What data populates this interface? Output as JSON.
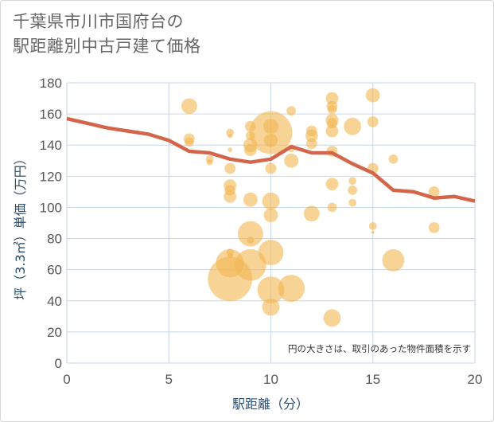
{
  "chart_data": {
    "type": "scatter",
    "title_lines": [
      "千葉県市川市国府台の",
      "駅距離別中古戸建て価格"
    ],
    "xlabel": "駅距離（分）",
    "ylabel": "坪（3.3㎡）単価（万円）",
    "note": "円の大きさは、取引のあった物件面積を示す",
    "xlim": [
      0,
      20
    ],
    "ylim": [
      0,
      180
    ],
    "x_ticks": [
      0,
      5,
      10,
      15,
      20
    ],
    "y_ticks": [
      0,
      20,
      40,
      60,
      80,
      100,
      120,
      140,
      160,
      180
    ],
    "grid": true,
    "colors": {
      "bubble": "#f2b550",
      "trend": "#d3654a",
      "grid": "#c8d6e5",
      "axis_text": "#555555"
    },
    "series": [
      {
        "kind": "bubble",
        "points": [
          {
            "x": 6,
            "y": 165,
            "s": 10
          },
          {
            "x": 6,
            "y": 144,
            "s": 7
          },
          {
            "x": 6,
            "y": 142,
            "s": 6
          },
          {
            "x": 7,
            "y": 131,
            "s": 5
          },
          {
            "x": 7,
            "y": 129,
            "s": 4
          },
          {
            "x": 8,
            "y": 148,
            "s": 5
          },
          {
            "x": 8,
            "y": 146,
            "s": 3
          },
          {
            "x": 8,
            "y": 137,
            "s": 3
          },
          {
            "x": 8,
            "y": 125,
            "s": 7
          },
          {
            "x": 8,
            "y": 114,
            "s": 8
          },
          {
            "x": 8,
            "y": 111,
            "s": 7
          },
          {
            "x": 8,
            "y": 107,
            "s": 8
          },
          {
            "x": 8,
            "y": 71,
            "s": 5
          },
          {
            "x": 8,
            "y": 69,
            "s": 4
          },
          {
            "x": 8,
            "y": 64,
            "s": 18
          },
          {
            "x": 8,
            "y": 54,
            "s": 28
          },
          {
            "x": 9,
            "y": 152,
            "s": 7
          },
          {
            "x": 9,
            "y": 146,
            "s": 6
          },
          {
            "x": 9,
            "y": 140,
            "s": 9
          },
          {
            "x": 9,
            "y": 137,
            "s": 8
          },
          {
            "x": 9,
            "y": 105,
            "s": 9
          },
          {
            "x": 9,
            "y": 83,
            "s": 16
          },
          {
            "x": 9,
            "y": 79,
            "s": 5
          },
          {
            "x": 9,
            "y": 63,
            "s": 20
          },
          {
            "x": 10,
            "y": 152,
            "s": 10
          },
          {
            "x": 10,
            "y": 148,
            "s": 27
          },
          {
            "x": 10,
            "y": 143,
            "s": 9
          },
          {
            "x": 10,
            "y": 125,
            "s": 7
          },
          {
            "x": 10,
            "y": 104,
            "s": 11
          },
          {
            "x": 10,
            "y": 95,
            "s": 9
          },
          {
            "x": 10,
            "y": 71,
            "s": 16
          },
          {
            "x": 10,
            "y": 47,
            "s": 17
          },
          {
            "x": 10,
            "y": 36,
            "s": 11
          },
          {
            "x": 11,
            "y": 162,
            "s": 6
          },
          {
            "x": 11,
            "y": 138,
            "s": 5
          },
          {
            "x": 11,
            "y": 130,
            "s": 9
          },
          {
            "x": 11,
            "y": 48,
            "s": 17
          },
          {
            "x": 12,
            "y": 149,
            "s": 7
          },
          {
            "x": 12,
            "y": 146,
            "s": 8
          },
          {
            "x": 12,
            "y": 141,
            "s": 7
          },
          {
            "x": 12,
            "y": 96,
            "s": 10
          },
          {
            "x": 13,
            "y": 170,
            "s": 8
          },
          {
            "x": 13,
            "y": 165,
            "s": 7
          },
          {
            "x": 13,
            "y": 163,
            "s": 6
          },
          {
            "x": 13,
            "y": 156,
            "s": 8
          },
          {
            "x": 13,
            "y": 154,
            "s": 7
          },
          {
            "x": 13,
            "y": 149,
            "s": 8
          },
          {
            "x": 13,
            "y": 136,
            "s": 7
          },
          {
            "x": 13,
            "y": 115,
            "s": 8
          },
          {
            "x": 13,
            "y": 100,
            "s": 6
          },
          {
            "x": 13,
            "y": 29,
            "s": 11
          },
          {
            "x": 14,
            "y": 152,
            "s": 11
          },
          {
            "x": 14,
            "y": 117,
            "s": 5
          },
          {
            "x": 14,
            "y": 111,
            "s": 6
          },
          {
            "x": 14,
            "y": 103,
            "s": 5
          },
          {
            "x": 15,
            "y": 172,
            "s": 9
          },
          {
            "x": 15,
            "y": 155,
            "s": 7
          },
          {
            "x": 15,
            "y": 125,
            "s": 7
          },
          {
            "x": 15,
            "y": 88,
            "s": 5
          },
          {
            "x": 15,
            "y": 84,
            "s": 2
          },
          {
            "x": 16,
            "y": 131,
            "s": 6
          },
          {
            "x": 16,
            "y": 66,
            "s": 14
          },
          {
            "x": 18,
            "y": 110,
            "s": 7
          },
          {
            "x": 18,
            "y": 87,
            "s": 7
          }
        ]
      },
      {
        "kind": "line",
        "x": [
          0,
          1,
          2,
          3,
          4,
          5,
          6,
          7,
          8,
          9,
          10,
          11,
          12,
          13,
          14,
          15,
          16,
          17,
          18,
          19,
          20
        ],
        "y": [
          157,
          154,
          151,
          149,
          147,
          143,
          136,
          135,
          131,
          129,
          131,
          139,
          135,
          135,
          128,
          122,
          111,
          110,
          106,
          107,
          104
        ]
      }
    ]
  }
}
